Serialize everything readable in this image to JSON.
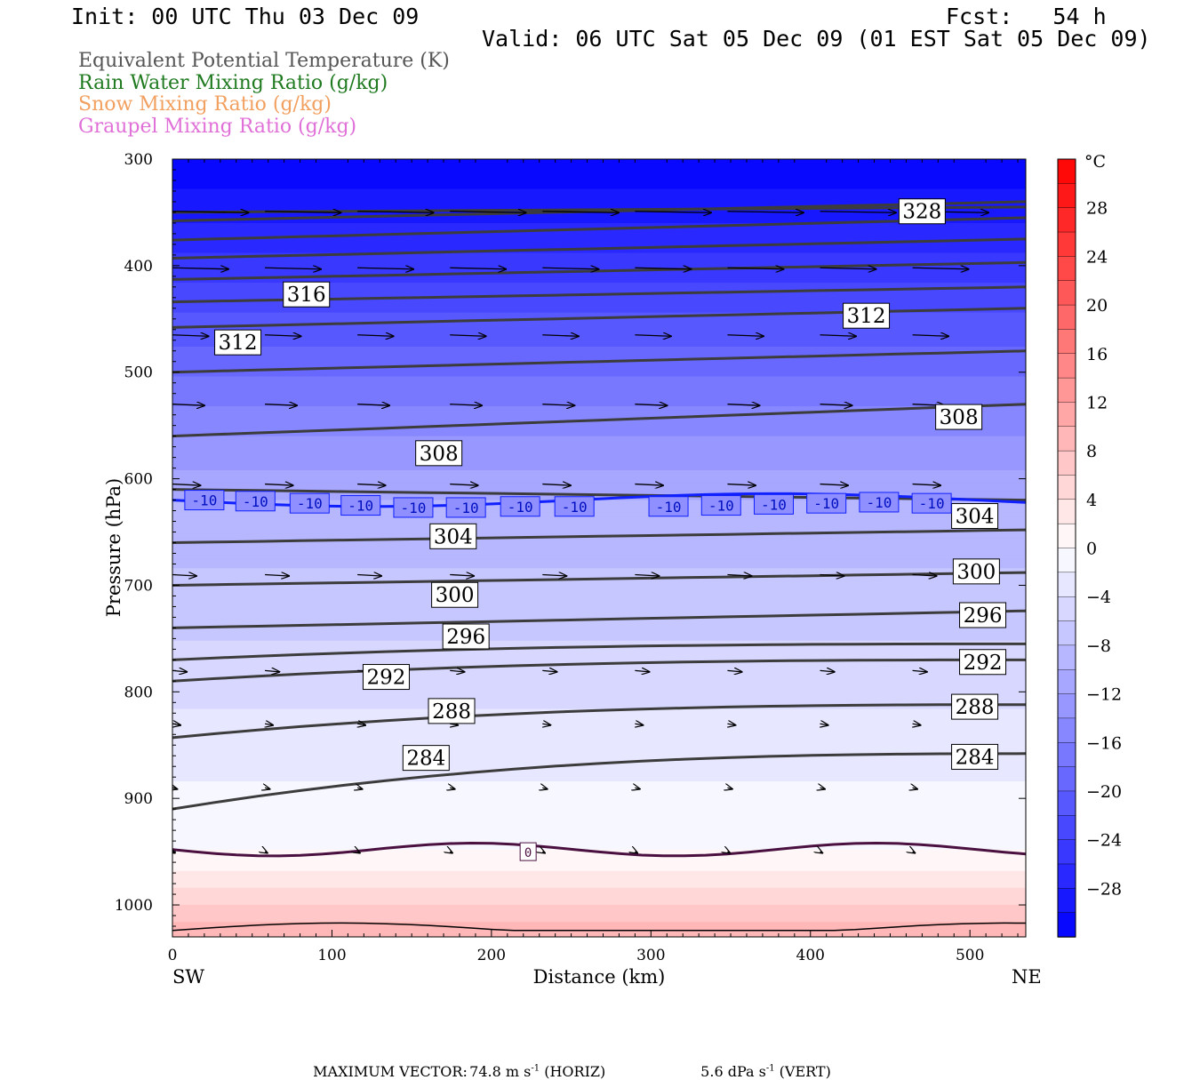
{
  "header": {
    "init": "Init: 00 UTC Thu 03 Dec 09",
    "fcst": "Fcst:   54 h",
    "valid": "Valid: 06 UTC Sat 05 Dec 09 (01 EST Sat 05 Dec 09)"
  },
  "legend": [
    {
      "label": "Equivalent Potential Temperature (K)",
      "color": "#555555"
    },
    {
      "label": "Rain Water Mixing Ratio (g/kg)",
      "color": "#1f7a1f"
    },
    {
      "label": "Snow Mixing Ratio (g/kg)",
      "color": "#f2a060"
    },
    {
      "label": "Graupel Mixing Ratio (g/kg)",
      "color": "#e070d8"
    }
  ],
  "chart_data": {
    "type": "cross-section",
    "x": {
      "label": "Distance (km)",
      "ticks": [
        0,
        100,
        200,
        300,
        400,
        500
      ],
      "range": [
        0,
        535
      ],
      "left_label": "SW",
      "right_label": "NE"
    },
    "y": {
      "label": "Pressure (hPa)",
      "ticks": [
        300,
        400,
        500,
        600,
        700,
        800,
        900,
        1000
      ],
      "range": [
        300,
        1030
      ],
      "inverted": true
    },
    "colorbar": {
      "unit": "°C",
      "ticks": [
        28,
        24,
        20,
        16,
        12,
        8,
        4,
        0,
        -4,
        -8,
        -12,
        -16,
        -20,
        -24,
        -28
      ],
      "range": [
        -32,
        32
      ],
      "cold_color": "#0000ff",
      "warm_color": "#ff0000"
    },
    "theta_e_labels": [
      {
        "label": "328",
        "x": 470,
        "p": 349
      },
      {
        "label": "316",
        "x": 84,
        "p": 427
      },
      {
        "label": "312",
        "x": 41,
        "p": 472
      },
      {
        "label": "312",
        "x": 435,
        "p": 447
      },
      {
        "label": "308",
        "x": 167,
        "p": 576
      },
      {
        "label": "308",
        "x": 493,
        "p": 542
      },
      {
        "label": "304",
        "x": 176,
        "p": 654
      },
      {
        "label": "304",
        "x": 503,
        "p": 635
      },
      {
        "label": "300",
        "x": 177,
        "p": 709
      },
      {
        "label": "300",
        "x": 504,
        "p": 687
      },
      {
        "label": "296",
        "x": 184,
        "p": 748
      },
      {
        "label": "296",
        "x": 508,
        "p": 728
      },
      {
        "label": "292",
        "x": 134,
        "p": 786
      },
      {
        "label": "292",
        "x": 508,
        "p": 772
      },
      {
        "label": "288",
        "x": 175,
        "p": 818
      },
      {
        "label": "288",
        "x": 503,
        "p": 814
      },
      {
        "label": "284",
        "x": 159,
        "p": 862
      },
      {
        "label": "284",
        "x": 503,
        "p": 861
      }
    ],
    "isotherm_labels": [
      {
        "label": "-10",
        "x": 20,
        "p": 620
      },
      {
        "label": "-10",
        "x": 52,
        "p": 621
      },
      {
        "label": "-10",
        "x": 86,
        "p": 623
      },
      {
        "label": "-10",
        "x": 118,
        "p": 625
      },
      {
        "label": "-10",
        "x": 151,
        "p": 627
      },
      {
        "label": "-10",
        "x": 184,
        "p": 627
      },
      {
        "label": "-10",
        "x": 218,
        "p": 626
      },
      {
        "label": "-10",
        "x": 252,
        "p": 626
      },
      {
        "label": "-10",
        "x": 311,
        "p": 626
      },
      {
        "label": "-10",
        "x": 344,
        "p": 625
      },
      {
        "label": "-10",
        "x": 377,
        "p": 624
      },
      {
        "label": "-10",
        "x": 410,
        "p": 623
      },
      {
        "label": "-10",
        "x": 443,
        "p": 622
      },
      {
        "label": "-10",
        "x": 476,
        "p": 623
      },
      {
        "label": "0",
        "x": 223,
        "p": 950
      }
    ],
    "footer": {
      "prefix": "MAXIMUM VECTOR:",
      "horiz": "74.8 m s",
      "horiz_exp": "-1",
      "horiz_tag": "(HORIZ)",
      "vert": "5.6 dPa s",
      "vert_exp": "-1",
      "vert_tag": "(VERT)"
    }
  }
}
